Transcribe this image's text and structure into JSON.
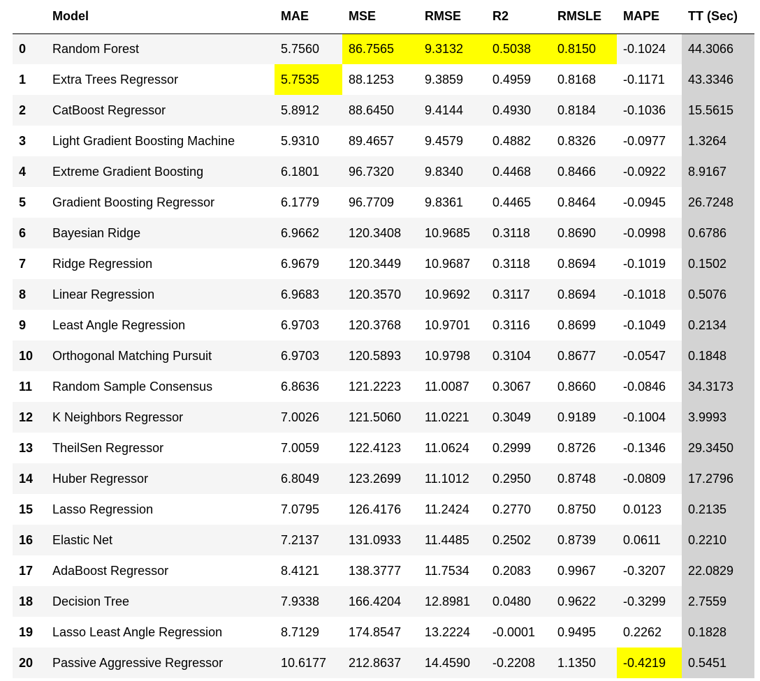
{
  "table": {
    "headers": [
      "",
      "Model",
      "MAE",
      "MSE",
      "RMSE",
      "R2",
      "RMSLE",
      "MAPE",
      "TT (Sec)"
    ],
    "highlight_color": "#ffff00",
    "tt_column_color": "#d3d3d3",
    "rows": [
      {
        "index": "0",
        "model": "Random Forest",
        "mae": "5.7560",
        "mse": "86.7565",
        "rmse": "9.3132",
        "r2": "0.5038",
        "rmsle": "0.8150",
        "mape": "-0.1024",
        "tt": "44.3066"
      },
      {
        "index": "1",
        "model": "Extra Trees Regressor",
        "mae": "5.7535",
        "mse": "88.1253",
        "rmse": "9.3859",
        "r2": "0.4959",
        "rmsle": "0.8168",
        "mape": "-0.1171",
        "tt": "43.3346"
      },
      {
        "index": "2",
        "model": "CatBoost Regressor",
        "mae": "5.8912",
        "mse": "88.6450",
        "rmse": "9.4144",
        "r2": "0.4930",
        "rmsle": "0.8184",
        "mape": "-0.1036",
        "tt": "15.5615"
      },
      {
        "index": "3",
        "model": "Light Gradient Boosting Machine",
        "mae": "5.9310",
        "mse": "89.4657",
        "rmse": "9.4579",
        "r2": "0.4882",
        "rmsle": "0.8326",
        "mape": "-0.0977",
        "tt": "1.3264"
      },
      {
        "index": "4",
        "model": "Extreme Gradient Boosting",
        "mae": "6.1801",
        "mse": "96.7320",
        "rmse": "9.8340",
        "r2": "0.4468",
        "rmsle": "0.8466",
        "mape": "-0.0922",
        "tt": "8.9167"
      },
      {
        "index": "5",
        "model": "Gradient Boosting Regressor",
        "mae": "6.1779",
        "mse": "96.7709",
        "rmse": "9.8361",
        "r2": "0.4465",
        "rmsle": "0.8464",
        "mape": "-0.0945",
        "tt": "26.7248"
      },
      {
        "index": "6",
        "model": "Bayesian Ridge",
        "mae": "6.9662",
        "mse": "120.3408",
        "rmse": "10.9685",
        "r2": "0.3118",
        "rmsle": "0.8690",
        "mape": "-0.0998",
        "tt": "0.6786"
      },
      {
        "index": "7",
        "model": "Ridge Regression",
        "mae": "6.9679",
        "mse": "120.3449",
        "rmse": "10.9687",
        "r2": "0.3118",
        "rmsle": "0.8694",
        "mape": "-0.1019",
        "tt": "0.1502"
      },
      {
        "index": "8",
        "model": "Linear Regression",
        "mae": "6.9683",
        "mse": "120.3570",
        "rmse": "10.9692",
        "r2": "0.3117",
        "rmsle": "0.8694",
        "mape": "-0.1018",
        "tt": "0.5076"
      },
      {
        "index": "9",
        "model": "Least Angle Regression",
        "mae": "6.9703",
        "mse": "120.3768",
        "rmse": "10.9701",
        "r2": "0.3116",
        "rmsle": "0.8699",
        "mape": "-0.1049",
        "tt": "0.2134"
      },
      {
        "index": "10",
        "model": "Orthogonal Matching Pursuit",
        "mae": "6.9703",
        "mse": "120.5893",
        "rmse": "10.9798",
        "r2": "0.3104",
        "rmsle": "0.8677",
        "mape": "-0.0547",
        "tt": "0.1848"
      },
      {
        "index": "11",
        "model": "Random Sample Consensus",
        "mae": "6.8636",
        "mse": "121.2223",
        "rmse": "11.0087",
        "r2": "0.3067",
        "rmsle": "0.8660",
        "mape": "-0.0846",
        "tt": "34.3173"
      },
      {
        "index": "12",
        "model": "K Neighbors Regressor",
        "mae": "7.0026",
        "mse": "121.5060",
        "rmse": "11.0221",
        "r2": "0.3049",
        "rmsle": "0.9189",
        "mape": "-0.1004",
        "tt": "3.9993"
      },
      {
        "index": "13",
        "model": "TheilSen Regressor",
        "mae": "7.0059",
        "mse": "122.4123",
        "rmse": "11.0624",
        "r2": "0.2999",
        "rmsle": "0.8726",
        "mape": "-0.1346",
        "tt": "29.3450"
      },
      {
        "index": "14",
        "model": "Huber Regressor",
        "mae": "6.8049",
        "mse": "123.2699",
        "rmse": "11.1012",
        "r2": "0.2950",
        "rmsle": "0.8748",
        "mape": "-0.0809",
        "tt": "17.2796"
      },
      {
        "index": "15",
        "model": "Lasso Regression",
        "mae": "7.0795",
        "mse": "126.4176",
        "rmse": "11.2424",
        "r2": "0.2770",
        "rmsle": "0.8750",
        "mape": "0.0123",
        "tt": "0.2135"
      },
      {
        "index": "16",
        "model": "Elastic Net",
        "mae": "7.2137",
        "mse": "131.0933",
        "rmse": "11.4485",
        "r2": "0.2502",
        "rmsle": "0.8739",
        "mape": "0.0611",
        "tt": "0.2210"
      },
      {
        "index": "17",
        "model": "AdaBoost Regressor",
        "mae": "8.4121",
        "mse": "138.3777",
        "rmse": "11.7534",
        "r2": "0.2083",
        "rmsle": "0.9967",
        "mape": "-0.3207",
        "tt": "22.0829"
      },
      {
        "index": "18",
        "model": "Decision Tree",
        "mae": "7.9338",
        "mse": "166.4204",
        "rmse": "12.8981",
        "r2": "0.0480",
        "rmsle": "0.9622",
        "mape": "-0.3299",
        "tt": "2.7559"
      },
      {
        "index": "19",
        "model": "Lasso Least Angle Regression",
        "mae": "8.7129",
        "mse": "174.8547",
        "rmse": "13.2224",
        "r2": "-0.0001",
        "rmsle": "0.9495",
        "mape": "0.2262",
        "tt": "0.1828"
      },
      {
        "index": "20",
        "model": "Passive Aggressive Regressor",
        "mae": "10.6177",
        "mse": "212.8637",
        "rmse": "14.4590",
        "r2": "-0.2208",
        "rmsle": "1.1350",
        "mape": "-0.4219",
        "tt": "0.5451"
      }
    ]
  }
}
